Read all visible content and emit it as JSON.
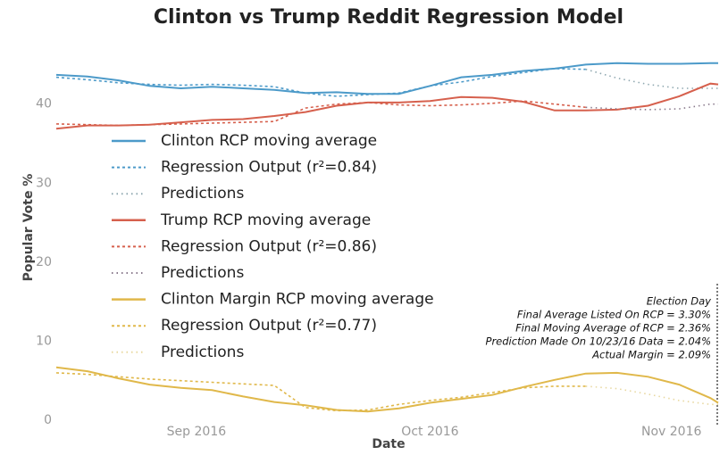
{
  "chart_data": {
    "type": "line",
    "title": "Clinton vs Trump Reddit Regression Model",
    "x_label": "Date",
    "y_label": "Popular Vote %",
    "x": [
      -18,
      -14,
      -10,
      -6,
      -2,
      2,
      6,
      10,
      14,
      18,
      22,
      26,
      30,
      34,
      38,
      42,
      46,
      50,
      54,
      58,
      62,
      66,
      67
    ],
    "xlim": [
      -18,
      67
    ],
    "xticks": [
      {
        "value": 0,
        "label": "Sep 2016"
      },
      {
        "value": 30,
        "label": "Oct 2016"
      },
      {
        "value": 61,
        "label": "Nov 2016"
      }
    ],
    "ylim": [
      0,
      45.5
    ],
    "yticks": [
      0,
      10,
      20,
      30,
      40
    ],
    "grid": false,
    "series": [
      {
        "name": "Clinton RCP moving average",
        "color": "#4c9ac9",
        "style": "solid",
        "values": [
          43.7,
          43.5,
          43.0,
          42.3,
          42.0,
          42.2,
          42.0,
          41.8,
          41.4,
          41.5,
          41.3,
          41.3,
          42.3,
          43.4,
          43.7,
          44.2,
          44.5,
          45.0,
          45.2,
          45.1,
          45.1,
          45.2,
          45.2
        ]
      },
      {
        "name": "Regression Output (r²=0.84)",
        "color": "#4c9ac9",
        "style": "dashed",
        "values": [
          43.4,
          43.1,
          42.7,
          42.5,
          42.4,
          42.5,
          42.4,
          42.2,
          41.4,
          41.0,
          41.2,
          41.4,
          42.3,
          42.8,
          43.5,
          44.0,
          44.5,
          44.4,
          null,
          null,
          null,
          null,
          null
        ]
      },
      {
        "name": "Predictions",
        "color": "#8fa8b0",
        "style": "dotted",
        "values": [
          null,
          null,
          null,
          null,
          null,
          null,
          null,
          null,
          null,
          null,
          null,
          null,
          null,
          null,
          null,
          null,
          null,
          44.4,
          43.3,
          42.5,
          42.0,
          42.0,
          42.0
        ]
      },
      {
        "name": "Trump RCP moving average",
        "color": "#d6604d",
        "style": "solid",
        "values": [
          36.9,
          37.3,
          37.3,
          37.4,
          37.7,
          38.0,
          38.1,
          38.5,
          39.0,
          39.8,
          40.2,
          40.2,
          40.4,
          40.9,
          40.8,
          40.3,
          39.2,
          39.2,
          39.3,
          39.8,
          41.0,
          42.6,
          42.5
        ]
      },
      {
        "name": "Regression Output (r²=0.86)",
        "color": "#d6604d",
        "style": "dashed",
        "values": [
          37.5,
          37.4,
          37.3,
          37.4,
          37.5,
          37.6,
          37.7,
          37.8,
          39.5,
          40.0,
          40.2,
          39.9,
          39.8,
          39.9,
          40.1,
          40.4,
          40.0,
          39.6,
          null,
          null,
          null,
          null,
          null
        ]
      },
      {
        "name": "Predictions",
        "color": "#8a7a8c",
        "style": "dotted",
        "values": [
          null,
          null,
          null,
          null,
          null,
          null,
          null,
          null,
          null,
          null,
          null,
          null,
          null,
          null,
          null,
          null,
          null,
          39.6,
          39.4,
          39.3,
          39.4,
          40.0,
          40.0
        ]
      },
      {
        "name": "Clinton Margin RCP moving average",
        "color": "#e0b84a",
        "style": "solid",
        "values": [
          6.7,
          6.2,
          5.3,
          4.5,
          4.1,
          3.8,
          3.0,
          2.3,
          1.9,
          1.3,
          1.1,
          1.5,
          2.2,
          2.7,
          3.2,
          4.2,
          5.1,
          5.9,
          6.0,
          5.5,
          4.5,
          2.8,
          2.2
        ]
      },
      {
        "name": "Regression Output (r²=0.77)",
        "color": "#e0b84a",
        "style": "dashed",
        "values": [
          6.0,
          5.8,
          5.5,
          5.2,
          5.0,
          4.8,
          4.6,
          4.4,
          1.6,
          1.2,
          1.3,
          2.0,
          2.5,
          2.9,
          3.5,
          4.1,
          4.3,
          4.3,
          null,
          null,
          null,
          null,
          null
        ]
      },
      {
        "name": "Predictions",
        "color": "#e8d8a0",
        "style": "dotted",
        "values": [
          null,
          null,
          null,
          null,
          null,
          null,
          null,
          null,
          null,
          null,
          null,
          null,
          null,
          null,
          null,
          null,
          null,
          4.3,
          4.0,
          3.3,
          2.5,
          2.0,
          2.0
        ]
      }
    ],
    "annotations": [
      "Election Day",
      "Final Average Listed On RCP = 3.30%",
      "Final Moving Average of RCP = 2.36%",
      "Prediction Made On 10/23/16 Data = 2.04%",
      "Actual Margin = 2.09%"
    ]
  }
}
